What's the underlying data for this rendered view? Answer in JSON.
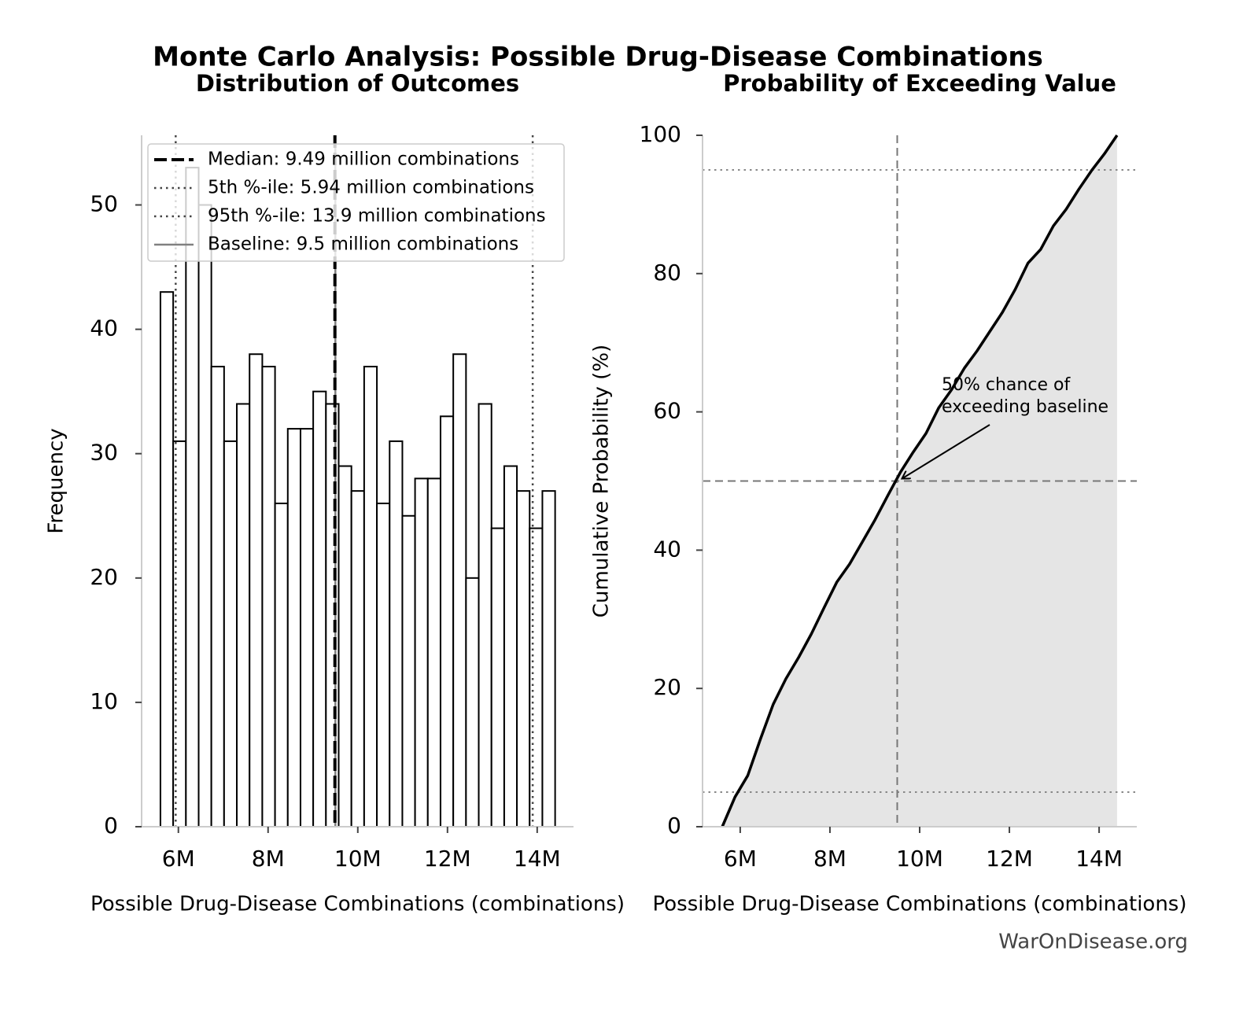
{
  "title": "Monte Carlo Analysis: Possible Drug-Disease Combinations",
  "footer": "WarOnDisease.org",
  "chart_data": [
    {
      "type": "histogram",
      "title": "Distribution of Outcomes",
      "xlabel": "Possible Drug-Disease Combinations (combinations)",
      "ylabel": "Frequency",
      "bins": [
        5600000,
        5884000,
        6168000,
        6452000,
        6735000,
        7019000,
        7303000,
        7587000,
        7871000,
        8155000,
        8439000,
        8723000,
        9006000,
        9290000,
        9574000,
        9858000,
        10142000,
        10426000,
        10710000,
        10994000,
        11277000,
        11561000,
        11845000,
        12129000,
        12413000,
        12697000,
        12981000,
        13265000,
        13548000,
        13832000,
        14116000,
        14400000
      ],
      "values": [
        43,
        31,
        53,
        50,
        37,
        31,
        34,
        38,
        37,
        26,
        32,
        32,
        35,
        34,
        29,
        27,
        37,
        26,
        31,
        25,
        28,
        28,
        33,
        38,
        20,
        34,
        24,
        29,
        27,
        24,
        27
      ],
      "color": "#ffffff",
      "edgecolor": "#000000",
      "xlim": [
        5180000,
        14810000
      ],
      "xticks": [
        {
          "value": 6000000,
          "label": "6M"
        },
        {
          "value": 8000000,
          "label": "8M"
        },
        {
          "value": 10000000,
          "label": "10M"
        },
        {
          "value": 12000000,
          "label": "12M"
        },
        {
          "value": 14000000,
          "label": "14M"
        }
      ],
      "ylim": [
        0,
        55.6
      ],
      "yticks": [
        0,
        10,
        20,
        30,
        40,
        50
      ],
      "legend": "upper left",
      "reference_lines": [
        {
          "name": "Median: 9.49 million combinations",
          "value": 9490000,
          "color": "#000000",
          "style": "dashed"
        },
        {
          "name": "5th %-ile: 5.94 million combinations",
          "value": 5940000,
          "color": "#444444",
          "style": "dotted"
        },
        {
          "name": "95th %-ile: 13.9 million combinations",
          "value": 13900000,
          "color": "#444444",
          "style": "dotted"
        },
        {
          "name": "Baseline: 9.5 million combinations",
          "value": 9500000,
          "color": "#808080",
          "style": "solid"
        }
      ]
    },
    {
      "type": "line",
      "title": "Probability of Exceeding Value",
      "xlabel": "Possible Drug-Disease Combinations (combinations)",
      "ylabel": "Cumulative Probability (%)",
      "x": [
        5600000,
        5884000,
        6168000,
        6452000,
        6735000,
        7019000,
        7303000,
        7587000,
        7871000,
        8155000,
        8439000,
        8723000,
        9006000,
        9290000,
        9574000,
        9858000,
        10142000,
        10426000,
        10710000,
        10994000,
        11277000,
        11561000,
        11845000,
        12129000,
        12413000,
        12697000,
        12981000,
        13265000,
        13548000,
        13832000,
        14116000,
        14400000
      ],
      "values": [
        0,
        4.3,
        7.4,
        12.7,
        17.7,
        21.4,
        24.5,
        27.9,
        31.7,
        35.4,
        38.0,
        41.2,
        44.4,
        47.9,
        51.3,
        54.2,
        56.9,
        60.6,
        63.2,
        66.3,
        68.8,
        71.6,
        74.4,
        77.7,
        81.5,
        83.5,
        86.9,
        89.3,
        92.2,
        94.9,
        97.3,
        100
      ],
      "color": "#000000",
      "fill_color": "#e5e5e5",
      "xlim": [
        5160000,
        14840000
      ],
      "xticks": [
        {
          "value": 6000000,
          "label": "6M"
        },
        {
          "value": 8000000,
          "label": "8M"
        },
        {
          "value": 10000000,
          "label": "10M"
        },
        {
          "value": 12000000,
          "label": "12M"
        },
        {
          "value": 14000000,
          "label": "14M"
        }
      ],
      "ylim": [
        0,
        100
      ],
      "yticks": [
        0,
        20,
        40,
        60,
        80,
        100
      ],
      "vlines": [
        {
          "value": 9500000,
          "style": "dashed"
        }
      ],
      "hlines": [
        {
          "value": 50,
          "style": "dashed"
        },
        {
          "value": 5,
          "style": "dotted"
        },
        {
          "value": 95,
          "style": "dotted"
        }
      ],
      "annotation": [
        "50% chance of",
        "exceeding baseline"
      ]
    }
  ]
}
